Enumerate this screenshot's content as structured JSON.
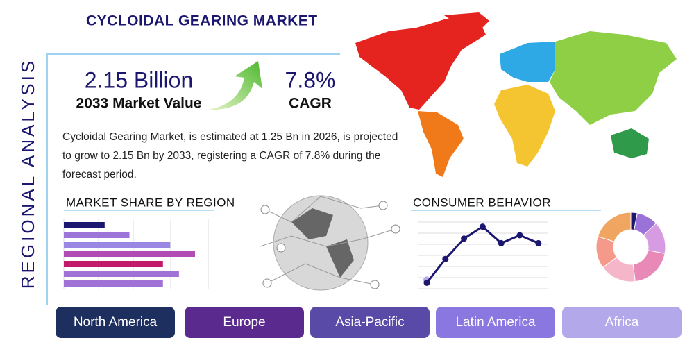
{
  "title": "CYCLOIDAL GEARING MARKET",
  "side_label": "REGIONAL ANALYSIS",
  "stats": [
    {
      "value": "2.15 Billion",
      "label": "2033 Market Value"
    },
    {
      "value": "7.8%",
      "label": "CAGR"
    }
  ],
  "description": "Cycloidal Gearing Market, is estimated at 1.25 Bn in 2026, is projected to grow to 2.15 Bn by 2033, registering a CAGR of 7.8% during the forecast period.",
  "market_share": {
    "title": "MARKET SHARE BY REGION",
    "xlim": [
      0,
      100
    ],
    "values": [
      28,
      45,
      73,
      90,
      68,
      79,
      68
    ],
    "colors": [
      "#1b1670",
      "#9d74d8",
      "#9a86e3",
      "#b24cb5",
      "#c2196b",
      "#a072d6",
      "#a072d6"
    ]
  },
  "consumer_behavior": {
    "title": "CONSUMER BEHAVIOR",
    "ylim": [
      0,
      100
    ],
    "values": [
      8,
      44,
      75,
      93,
      68,
      80,
      68
    ],
    "color": "#1b1670"
  },
  "donut": {
    "values": [
      3,
      10,
      15,
      20,
      17,
      15,
      20
    ],
    "colors": [
      "#1b1670",
      "#9b72d8",
      "#d69be0",
      "#e889b8",
      "#f4b6c8",
      "#f59a8a",
      "#f0a560"
    ]
  },
  "regions": [
    "North America",
    "Europe",
    "Asia-Pacific",
    "Latin America",
    "Africa"
  ],
  "region_colors": [
    "#1d2f5e",
    "#5b2a8f",
    "#5a4aa8",
    "#8a78e0",
    "#b3a8ea"
  ]
}
